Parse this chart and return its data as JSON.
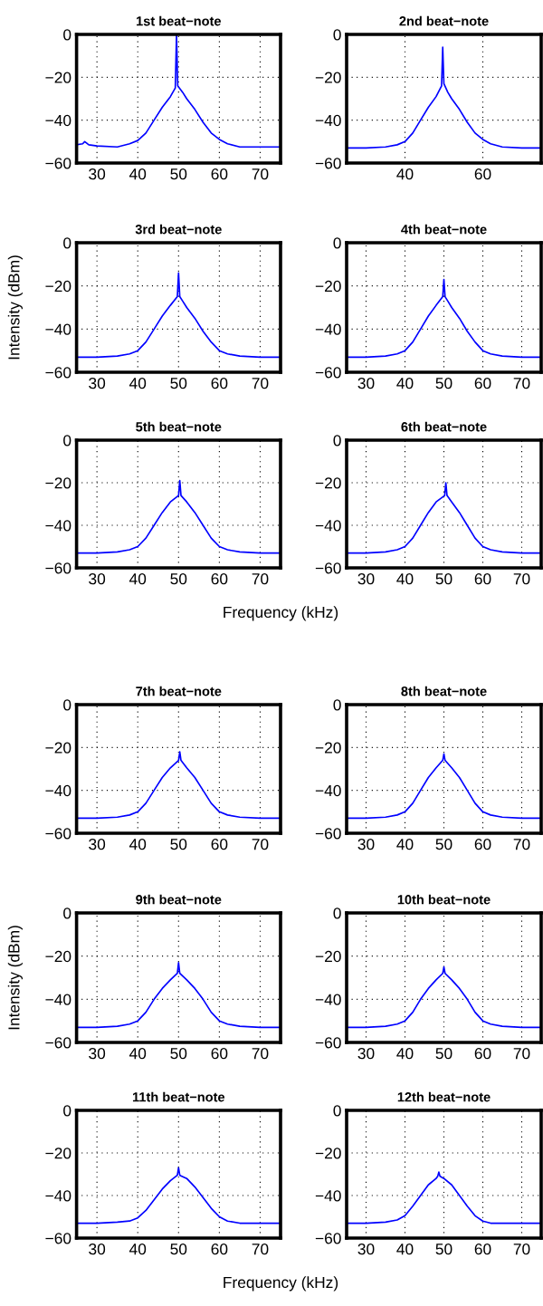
{
  "chart_data": [
    {
      "type": "line",
      "title": "1st beat−note",
      "xlim": [
        25,
        75
      ],
      "ylim": [
        -60,
        0
      ],
      "xticks": [
        30,
        40,
        50,
        60,
        70
      ],
      "yticks": [
        {
          "value": -60,
          "label": "−60"
        },
        {
          "value": -40,
          "label": "−40"
        },
        {
          "value": -20,
          "label": "−20"
        },
        0
      ],
      "grid": true,
      "series": [
        {
          "color": "#0000ff",
          "x": [
            25,
            26.5,
            27,
            28,
            30,
            35,
            38,
            40,
            42,
            44,
            46,
            48,
            49.2,
            49.5,
            49.8,
            51,
            52,
            54,
            56,
            58,
            60,
            62,
            65,
            70,
            75
          ],
          "values": [
            -51.5,
            -51,
            -50,
            -51.5,
            -52,
            -52.5,
            -51,
            -49.5,
            -46,
            -40,
            -34,
            -29,
            -25,
            0,
            -24,
            -27,
            -30,
            -35,
            -41,
            -46,
            -49,
            -51,
            -52.5,
            -52.5,
            -52.5
          ]
        }
      ]
    },
    {
      "type": "line",
      "title": "2nd beat−note",
      "xlim": [
        25,
        75
      ],
      "ylim": [
        -60,
        0
      ],
      "xticks": [
        40,
        60
      ],
      "yticks": [
        {
          "value": -60,
          "label": "−60"
        },
        {
          "value": -40,
          "label": "−40"
        },
        {
          "value": -20,
          "label": "−20"
        },
        0
      ],
      "grid": true,
      "series": [
        {
          "color": "#0000ff",
          "x": [
            25,
            30,
            35,
            38,
            40,
            42,
            44,
            46,
            48,
            49.4,
            49.7,
            50,
            51,
            52,
            54,
            56,
            58,
            60,
            62,
            65,
            70,
            75
          ],
          "values": [
            -53,
            -53,
            -52.5,
            -51.5,
            -50,
            -46,
            -40,
            -34,
            -29,
            -24,
            -6,
            -23,
            -27,
            -30,
            -35,
            -41,
            -46,
            -49,
            -51,
            -52.5,
            -53,
            -53
          ]
        }
      ]
    },
    {
      "type": "line",
      "title": "3rd beat−note",
      "ylabel": "Intensity (dBm)",
      "xlim": [
        25,
        75
      ],
      "ylim": [
        -60,
        0
      ],
      "xticks": [
        30,
        40,
        50,
        60,
        70
      ],
      "yticks": [
        {
          "value": -60,
          "label": "−60"
        },
        {
          "value": -40,
          "label": "−40"
        },
        {
          "value": -20,
          "label": "−20"
        },
        0
      ],
      "grid": true,
      "series": [
        {
          "color": "#0000ff",
          "x": [
            25,
            30,
            35,
            38,
            40,
            42,
            44,
            46,
            48,
            49.7,
            50,
            50.3,
            51,
            52,
            54,
            56,
            58,
            60,
            62,
            65,
            70,
            75
          ],
          "values": [
            -53,
            -53,
            -52.5,
            -51.5,
            -50,
            -46,
            -40,
            -34,
            -29,
            -25,
            -14,
            -25,
            -27,
            -30,
            -35,
            -41,
            -46,
            -50,
            -51.5,
            -52.5,
            -53,
            -53
          ]
        }
      ]
    },
    {
      "type": "line",
      "title": "4th beat−note",
      "xlim": [
        25,
        75
      ],
      "ylim": [
        -60,
        0
      ],
      "xticks": [
        30,
        40,
        50,
        60,
        70
      ],
      "yticks": [
        {
          "value": -60,
          "label": "−60"
        },
        {
          "value": -40,
          "label": "−40"
        },
        {
          "value": -20,
          "label": "−20"
        },
        0
      ],
      "grid": true,
      "series": [
        {
          "color": "#0000ff",
          "x": [
            25,
            30,
            35,
            38,
            40,
            42,
            44,
            46,
            48,
            49.7,
            50,
            50.3,
            51,
            52,
            54,
            56,
            58,
            60,
            62,
            65,
            70,
            75
          ],
          "values": [
            -53,
            -53,
            -52.5,
            -51.5,
            -50,
            -46,
            -40,
            -34,
            -29,
            -25,
            -17,
            -25,
            -27,
            -30,
            -35,
            -41,
            -46,
            -50,
            -51.5,
            -52.5,
            -53,
            -53
          ]
        }
      ]
    },
    {
      "type": "line",
      "title": "5th beat−note",
      "xlabel": "Frequency (kHz)",
      "xlim": [
        25,
        75
      ],
      "ylim": [
        -60,
        0
      ],
      "xticks": [
        30,
        40,
        50,
        60,
        70
      ],
      "yticks": [
        {
          "value": -60,
          "label": "−60"
        },
        {
          "value": -40,
          "label": "−40"
        },
        {
          "value": -20,
          "label": "−20"
        },
        0
      ],
      "grid": true,
      "series": [
        {
          "color": "#0000ff",
          "x": [
            25,
            30,
            35,
            38,
            40,
            42,
            44,
            46,
            48,
            50,
            50.3,
            50.6,
            52,
            54,
            56,
            58,
            60,
            62,
            65,
            70,
            75
          ],
          "values": [
            -53,
            -53,
            -52.5,
            -51.5,
            -50,
            -46,
            -40,
            -34,
            -29,
            -26,
            -19,
            -26,
            -29,
            -34,
            -40,
            -46,
            -50,
            -51.5,
            -52.5,
            -53,
            -53
          ]
        }
      ]
    },
    {
      "type": "line",
      "title": "6th beat−note",
      "xlim": [
        25,
        75
      ],
      "ylim": [
        -60,
        0
      ],
      "xticks": [
        30,
        40,
        50,
        60,
        70
      ],
      "yticks": [
        {
          "value": -60,
          "label": "−60"
        },
        {
          "value": -40,
          "label": "−40"
        },
        {
          "value": -20,
          "label": "−20"
        },
        0
      ],
      "grid": true,
      "series": [
        {
          "color": "#0000ff",
          "x": [
            25,
            30,
            35,
            38,
            40,
            42,
            44,
            46,
            48,
            50.2,
            50.5,
            50.8,
            52,
            54,
            56,
            58,
            60,
            62,
            65,
            70,
            75
          ],
          "values": [
            -53,
            -53,
            -52.5,
            -51.5,
            -50,
            -46,
            -40,
            -34,
            -29,
            -26,
            -20,
            -26,
            -29,
            -34,
            -40,
            -46,
            -50,
            -51.5,
            -52.5,
            -53,
            -53
          ]
        }
      ]
    },
    {
      "type": "line",
      "title": "7th beat−note",
      "xlim": [
        25,
        75
      ],
      "ylim": [
        -60,
        0
      ],
      "xticks": [
        30,
        40,
        50,
        60,
        70
      ],
      "yticks": [
        {
          "value": -60,
          "label": "−60"
        },
        {
          "value": -40,
          "label": "−40"
        },
        {
          "value": -20,
          "label": "−20"
        },
        0
      ],
      "grid": true,
      "series": [
        {
          "color": "#0000ff",
          "x": [
            25,
            30,
            35,
            38,
            40,
            42,
            44,
            46,
            48,
            50,
            50.3,
            50.6,
            52,
            54,
            56,
            58,
            60,
            62,
            65,
            70,
            75
          ],
          "values": [
            -53,
            -53,
            -52.5,
            -51.5,
            -50,
            -46,
            -40,
            -34,
            -29.5,
            -26,
            -22,
            -26,
            -29.5,
            -34,
            -40,
            -46,
            -50,
            -51.5,
            -52.5,
            -53,
            -53
          ]
        }
      ]
    },
    {
      "type": "line",
      "title": "8th beat−note",
      "xlim": [
        25,
        75
      ],
      "ylim": [
        -60,
        0
      ],
      "xticks": [
        30,
        40,
        50,
        60,
        70
      ],
      "yticks": [
        {
          "value": -60,
          "label": "−60"
        },
        {
          "value": -40,
          "label": "−40"
        },
        {
          "value": -20,
          "label": "−20"
        },
        0
      ],
      "grid": true,
      "series": [
        {
          "color": "#0000ff",
          "x": [
            25,
            30,
            35,
            38,
            40,
            42,
            44,
            46,
            48,
            49.7,
            50,
            50.3,
            52,
            54,
            56,
            58,
            60,
            62,
            65,
            70,
            75
          ],
          "values": [
            -53,
            -53,
            -52.5,
            -51.5,
            -50,
            -46,
            -40,
            -34,
            -29.5,
            -26,
            -23,
            -26,
            -29.5,
            -34,
            -40,
            -46,
            -50,
            -51.5,
            -52.5,
            -53,
            -53
          ]
        }
      ]
    },
    {
      "type": "line",
      "title": "9th beat−note",
      "ylabel": "Intensity (dBm)",
      "xlim": [
        25,
        75
      ],
      "ylim": [
        -60,
        0
      ],
      "xticks": [
        30,
        40,
        50,
        60,
        70
      ],
      "yticks": [
        {
          "value": -60,
          "label": "−60"
        },
        {
          "value": -40,
          "label": "−40"
        },
        {
          "value": -20,
          "label": "−20"
        },
        0
      ],
      "grid": true,
      "series": [
        {
          "color": "#0000ff",
          "x": [
            25,
            30,
            35,
            38,
            40,
            42,
            44,
            46,
            48,
            49.7,
            50,
            50.3,
            52,
            54,
            56,
            58,
            60,
            62,
            65,
            70,
            75
          ],
          "values": [
            -53,
            -53,
            -52.5,
            -51.5,
            -50,
            -46,
            -40,
            -35,
            -31,
            -28,
            -23,
            -28,
            -31,
            -35,
            -40,
            -46,
            -50,
            -51.5,
            -52.5,
            -53,
            -53
          ]
        }
      ]
    },
    {
      "type": "line",
      "title": "10th beat−note",
      "xlim": [
        25,
        75
      ],
      "ylim": [
        -60,
        0
      ],
      "xticks": [
        30,
        40,
        50,
        60,
        70
      ],
      "yticks": [
        {
          "value": -60,
          "label": "−60"
        },
        {
          "value": -40,
          "label": "−40"
        },
        {
          "value": -20,
          "label": "−20"
        },
        0
      ],
      "grid": true,
      "series": [
        {
          "color": "#0000ff",
          "x": [
            25,
            30,
            35,
            38,
            40,
            42,
            44,
            46,
            48,
            49.7,
            50,
            50.3,
            52,
            54,
            56,
            58,
            60,
            62,
            65,
            70,
            75
          ],
          "values": [
            -53,
            -53,
            -52.5,
            -51.5,
            -50,
            -46,
            -40,
            -35,
            -31,
            -28,
            -25,
            -28,
            -31,
            -35,
            -40,
            -46,
            -50,
            -51.5,
            -52.5,
            -53,
            -53
          ]
        }
      ]
    },
    {
      "type": "line",
      "title": "11th beat−note",
      "xlabel": "Frequency (kHz)",
      "xlim": [
        25,
        75
      ],
      "ylim": [
        -60,
        0
      ],
      "xticks": [
        30,
        40,
        50,
        60,
        70
      ],
      "yticks": [
        {
          "value": -60,
          "label": "−60"
        },
        {
          "value": -40,
          "label": "−40"
        },
        {
          "value": -20,
          "label": "−20"
        },
        0
      ],
      "grid": true,
      "series": [
        {
          "color": "#0000ff",
          "x": [
            25,
            30,
            35,
            38,
            40,
            42,
            44,
            46,
            48,
            49.7,
            50,
            50.3,
            52,
            54,
            56,
            58,
            60,
            62,
            65,
            70,
            75
          ],
          "values": [
            -53,
            -53,
            -52.5,
            -52,
            -50.5,
            -47,
            -42,
            -37,
            -33,
            -30.5,
            -27,
            -30.5,
            -32,
            -36,
            -41,
            -46,
            -50,
            -52,
            -53,
            -53,
            -53
          ]
        }
      ]
    },
    {
      "type": "line",
      "title": "12th beat−note",
      "xlim": [
        25,
        75
      ],
      "ylim": [
        -60,
        0
      ],
      "xticks": [
        30,
        40,
        50,
        60,
        70
      ],
      "yticks": [
        {
          "value": -60,
          "label": "−60"
        },
        {
          "value": -40,
          "label": "−40"
        },
        {
          "value": -20,
          "label": "−20"
        },
        0
      ],
      "grid": true,
      "series": [
        {
          "color": "#0000ff",
          "x": [
            25,
            30,
            35,
            38,
            40,
            42,
            44,
            46,
            48,
            48.4,
            48.7,
            49,
            50,
            52,
            54,
            56,
            58,
            60,
            62,
            65,
            70,
            75
          ],
          "values": [
            -53,
            -53,
            -52.5,
            -51.5,
            -49.5,
            -45,
            -40,
            -35,
            -32,
            -31,
            -29,
            -31,
            -32,
            -35,
            -40,
            -45,
            -49.5,
            -52,
            -53,
            -53,
            -53,
            -53
          ]
        }
      ]
    }
  ]
}
